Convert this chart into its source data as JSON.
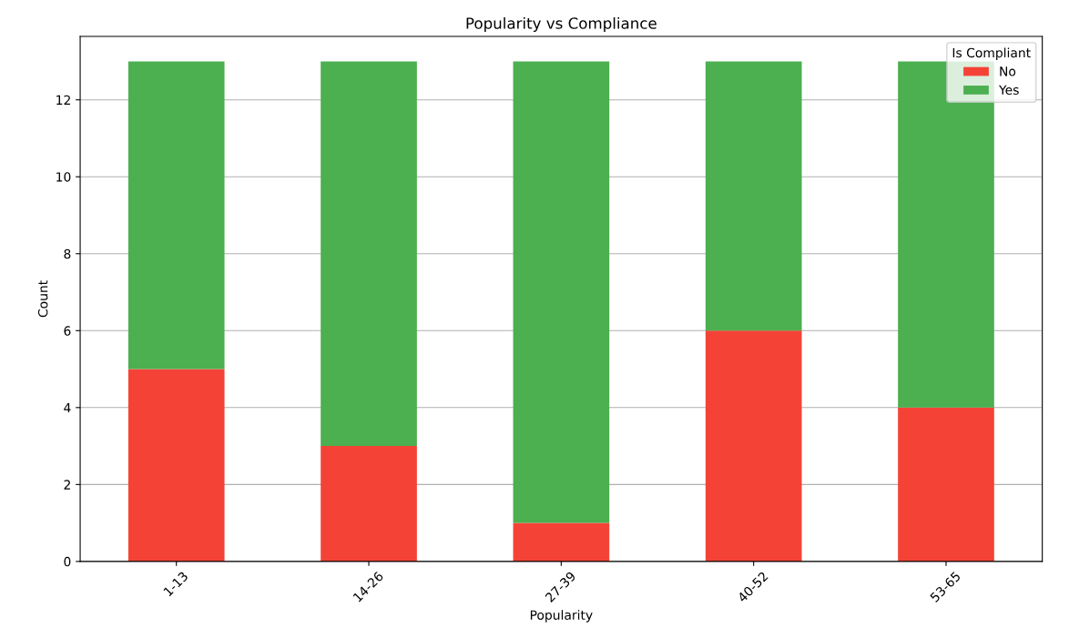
{
  "chart_data": {
    "type": "bar",
    "title": "Popularity vs Compliance",
    "xlabel": "Popularity",
    "ylabel": "Count",
    "legend_title": "Is Compliant",
    "categories": [
      "1-13",
      "14-26",
      "27-39",
      "40-52",
      "53-65"
    ],
    "series": [
      {
        "name": "No",
        "color": "#f44336",
        "values": [
          5,
          3,
          1,
          6,
          4
        ]
      },
      {
        "name": "Yes",
        "color": "#4caf50",
        "values": [
          8,
          10,
          12,
          7,
          9
        ]
      }
    ],
    "stacked": true,
    "ylim": [
      0,
      13.65
    ],
    "yticks": [
      0,
      2,
      4,
      6,
      8,
      10,
      12
    ],
    "grid": "y",
    "legend": "top right"
  }
}
